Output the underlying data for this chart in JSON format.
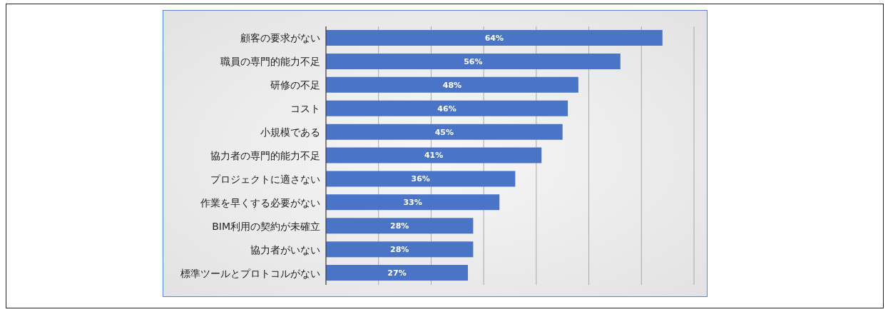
{
  "chart_data": {
    "type": "bar",
    "orientation": "horizontal",
    "categories": [
      "顧客の要求がない",
      "職員の専門的能力不足",
      "研修の不足",
      "コスト",
      "小規模である",
      "協力者の専門的能力不足",
      "プロジェクトに適さない",
      "作業を早くする必要がない",
      "BIM利用の契約が未確立",
      "協力者がいない",
      "標準ツールとプロトコルがない"
    ],
    "values": [
      64,
      56,
      48,
      46,
      45,
      41,
      36,
      33,
      28,
      28,
      27
    ],
    "value_labels": [
      "64%",
      "56%",
      "48%",
      "46%",
      "45%",
      "41%",
      "36%",
      "33%",
      "28%",
      "28%",
      "27%"
    ],
    "color": "#4a74c6",
    "xlim": [
      0,
      70
    ],
    "tick_labels": "y",
    "grid": "x"
  }
}
